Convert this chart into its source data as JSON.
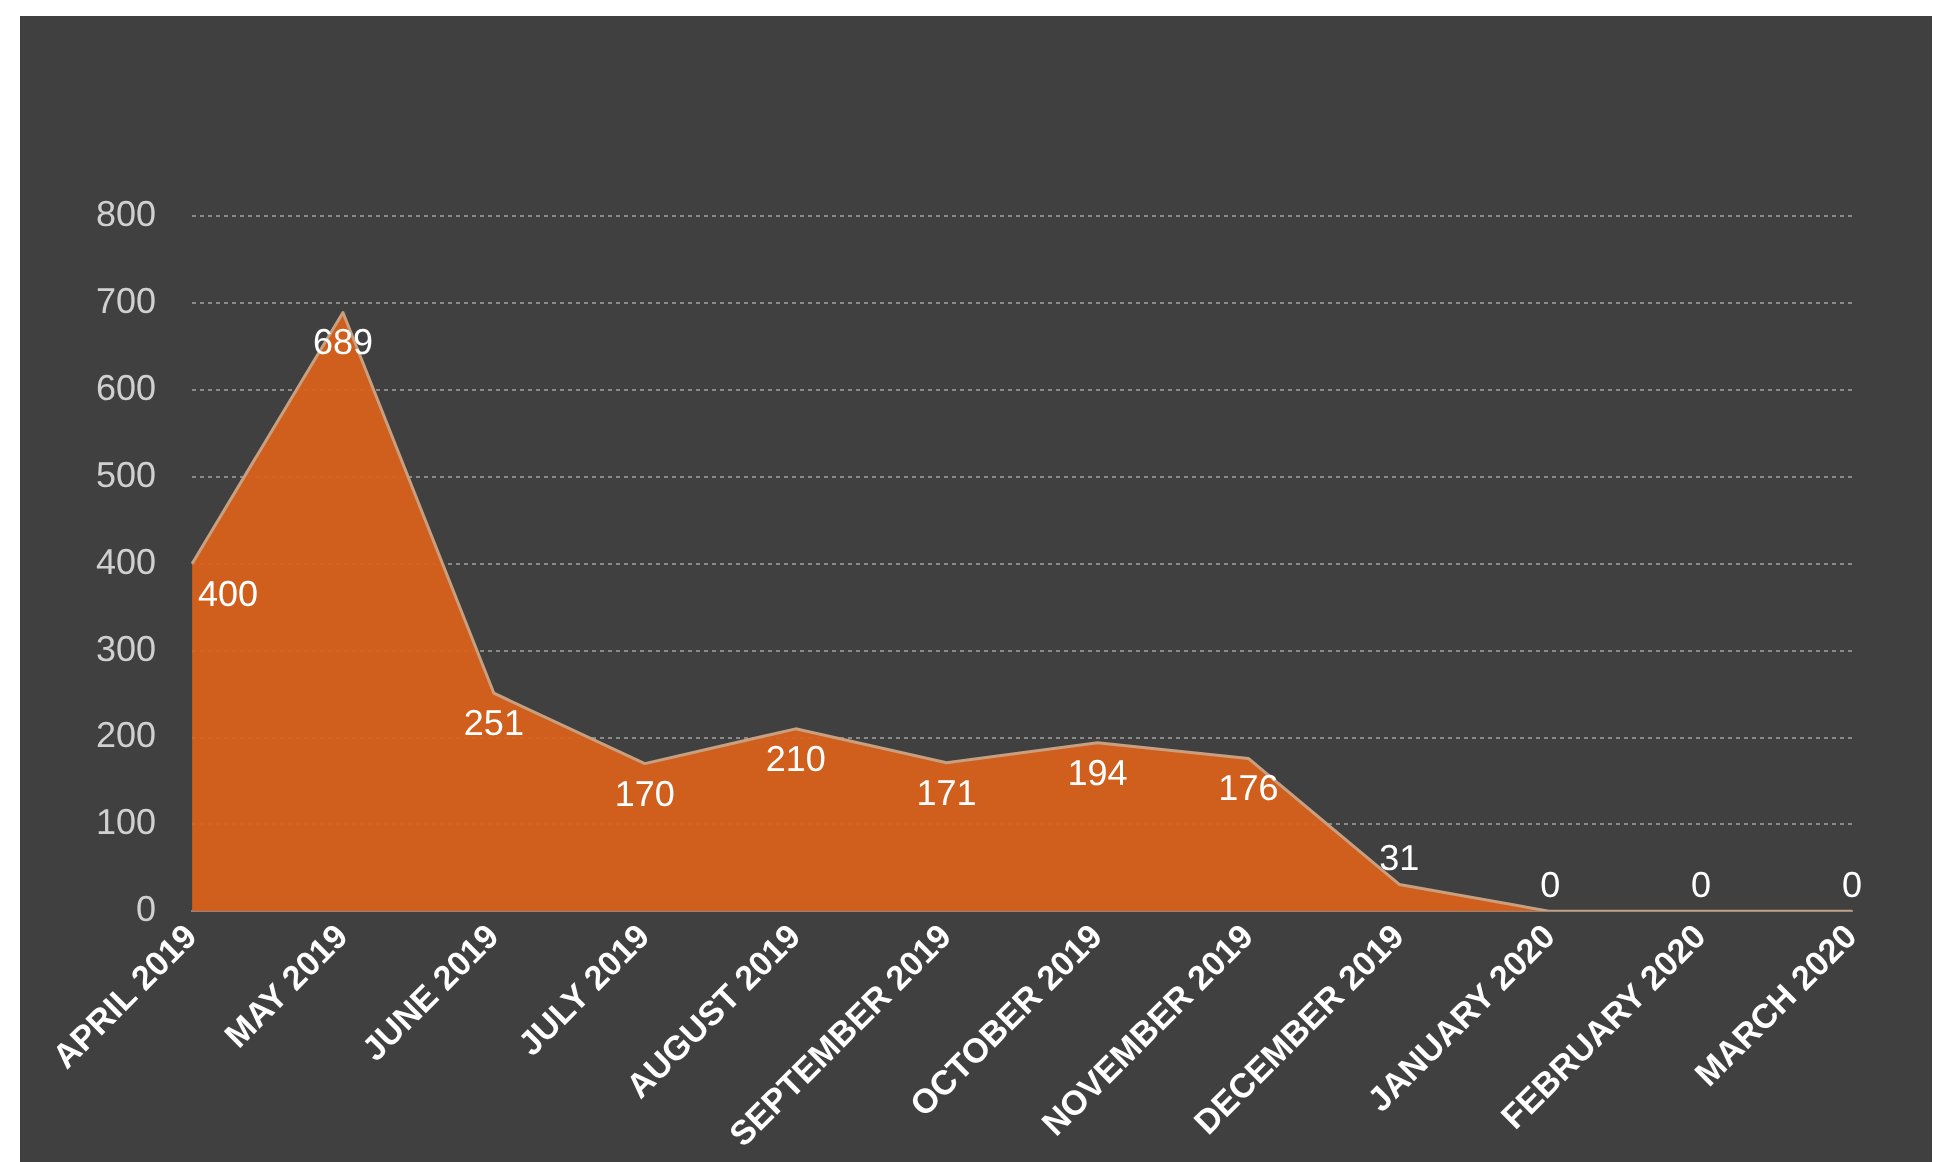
{
  "chart_data": {
    "type": "area",
    "categories": [
      "APRIL 2019",
      "MAY 2019",
      "JUNE 2019",
      "JULY 2019",
      "AUGUST 2019",
      "SEPTEMBER 2019",
      "OCTOBER 2019",
      "NOVEMBER 2019",
      "DECEMBER 2019",
      "JANUARY 2020",
      "FEBRUARY 2020",
      "MARCH 2020"
    ],
    "values": [
      400,
      689,
      251,
      170,
      210,
      171,
      194,
      176,
      31,
      0,
      0,
      0
    ],
    "color": "#d9601a",
    "ylim": [
      0,
      800
    ],
    "yticks": [
      0,
      100,
      200,
      300,
      400,
      500,
      600,
      700,
      800
    ],
    "grid": "y",
    "legend": false,
    "data_labels": true
  }
}
